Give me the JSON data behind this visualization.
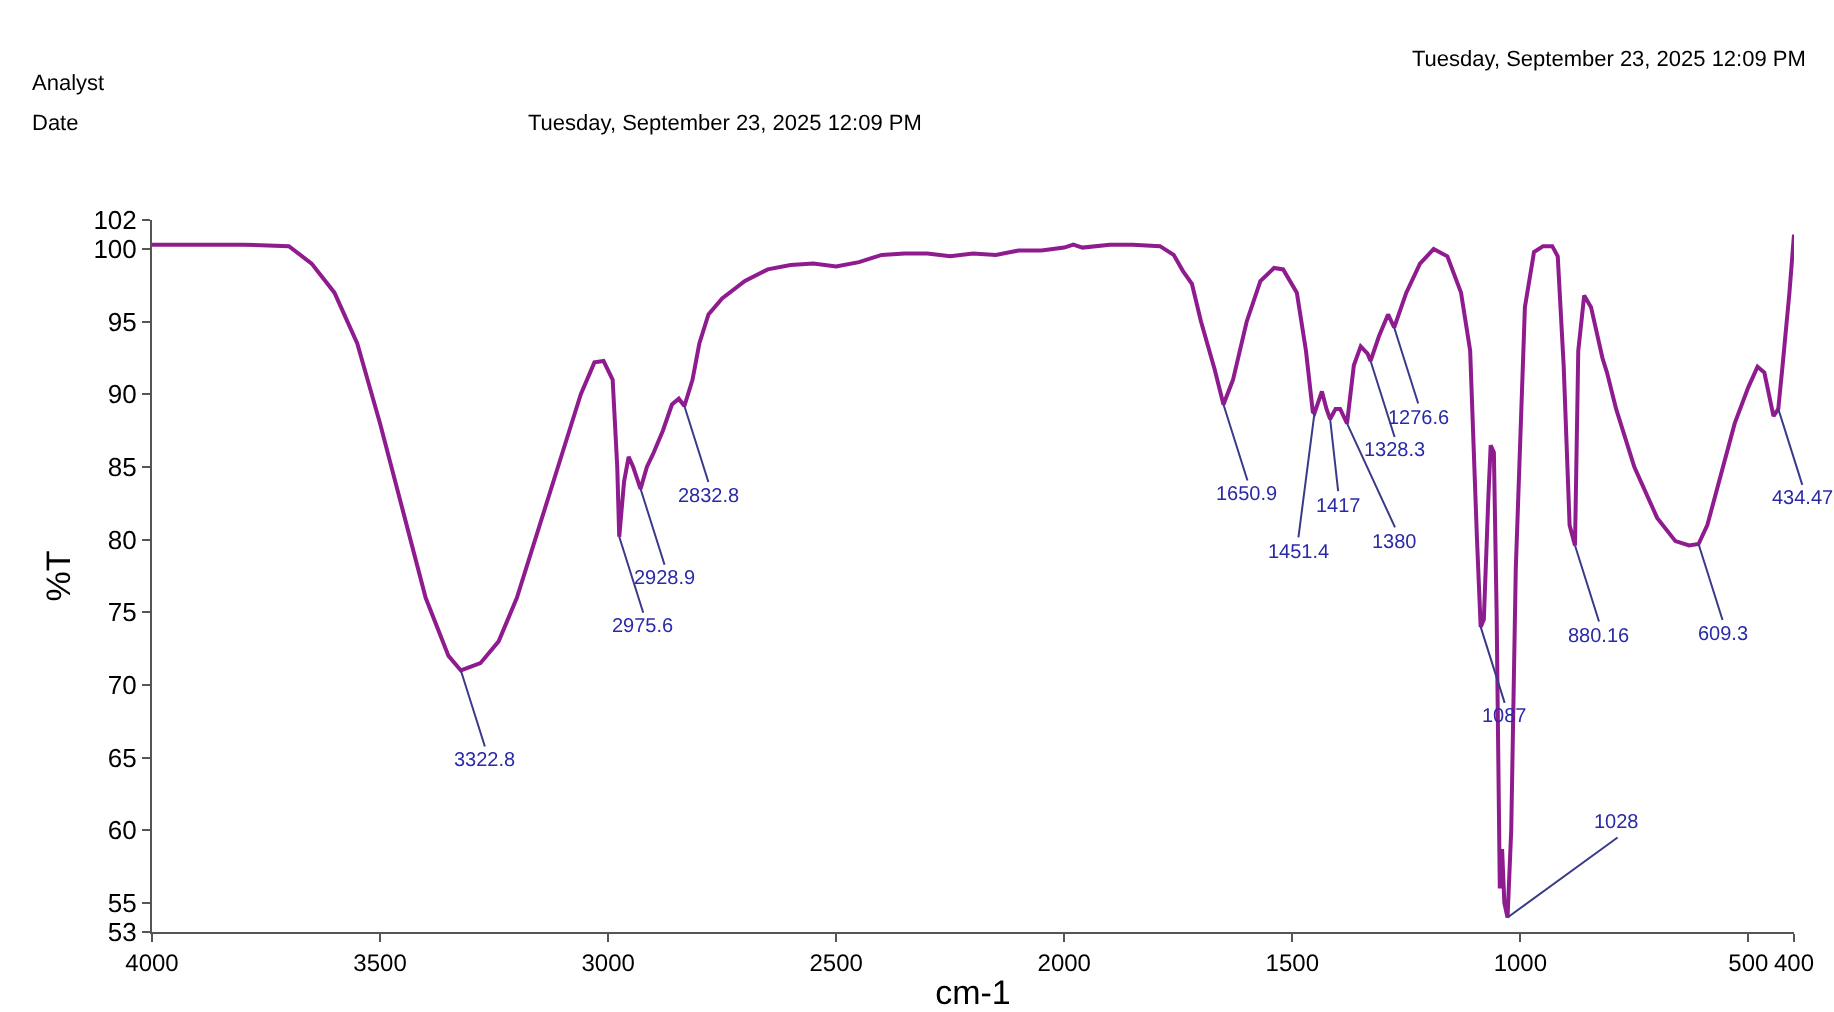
{
  "chart_data": {
    "type": "line",
    "xlabel": "cm-1",
    "ylabel": "%T",
    "annotations": [
      "Analyst",
      "Date",
      "Tuesday, September 23, 2025 12:09 PM",
      "Tuesday, September 23, 2025 12:09 PM",
      {
        "text": "3322.8",
        "x": 3322.8,
        "y": 71
      },
      {
        "text": "2975.6",
        "x": 2975.6,
        "y": 80.2
      },
      {
        "text": "2928.9",
        "x": 2928.9,
        "y": 83.5
      },
      {
        "text": "2832.8",
        "x": 2832.8,
        "y": 89.2
      },
      {
        "text": "1650.9",
        "x": 1650.9,
        "y": 89.3
      },
      {
        "text": "1451.4",
        "x": 1451.4,
        "y": 88.7
      },
      {
        "text": "1417",
        "x": 1417,
        "y": 88.3
      },
      {
        "text": "1380",
        "x": 1380,
        "y": 88
      },
      {
        "text": "1328.3",
        "x": 1328.3,
        "y": 92.3
      },
      {
        "text": "1276.6",
        "x": 1276.6,
        "y": 94.6
      },
      {
        "text": "1087",
        "x": 1087,
        "y": 74
      },
      {
        "text": "1028",
        "x": 1028,
        "y": 54
      },
      {
        "text": "880.16",
        "x": 880.16,
        "y": 79.6
      },
      {
        "text": "609.3",
        "x": 609.3,
        "y": 79.7
      },
      {
        "text": "434.47",
        "x": 434.47,
        "y": 89
      }
    ],
    "xlim": [
      4000,
      400
    ],
    "xticks": [
      4000,
      3500,
      3000,
      2500,
      2000,
      1500,
      1000,
      500,
      400
    ],
    "ylim": [
      53,
      102
    ],
    "yticks": [
      53,
      55,
      60,
      65,
      70,
      75,
      80,
      85,
      90,
      95,
      100,
      102
    ],
    "grid": false,
    "marker": "none",
    "line_style": "solid",
    "series": [
      {
        "color": "#8e1c8e",
        "x": [
          4000,
          3800,
          3700,
          3650,
          3600,
          3550,
          3500,
          3450,
          3400,
          3350,
          3322.8,
          3280,
          3240,
          3200,
          3150,
          3100,
          3060,
          3030,
          3010,
          2990,
          2980,
          2975.6,
          2965,
          2955,
          2945,
          2928.9,
          2915,
          2900,
          2880,
          2860,
          2845,
          2832.8,
          2815,
          2800,
          2780,
          2750,
          2700,
          2650,
          2600,
          2550,
          2500,
          2450,
          2400,
          2350,
          2300,
          2250,
          2200,
          2150,
          2100,
          2050,
          2000,
          1980,
          1960,
          1900,
          1850,
          1790,
          1760,
          1740,
          1720,
          1700,
          1670,
          1650.9,
          1630,
          1600,
          1570,
          1540,
          1520,
          1490,
          1470,
          1455,
          1451.4,
          1435,
          1425,
          1417,
          1405,
          1395,
          1380,
          1365,
          1350,
          1335,
          1328.3,
          1310,
          1290,
          1276.6,
          1250,
          1220,
          1190,
          1160,
          1130,
          1110,
          1095,
          1087,
          1080,
          1070,
          1065,
          1058,
          1052,
          1045,
          1040,
          1035,
          1028,
          1020,
          1010,
          990,
          970,
          950,
          930,
          918,
          905,
          892,
          880.16,
          873,
          860,
          845,
          820,
          810,
          790,
          750,
          700,
          660,
          630,
          609.3,
          590,
          560,
          530,
          500,
          480,
          465,
          445,
          434.47,
          425,
          410,
          400
        ],
        "values": [
          100.3,
          100.3,
          100.2,
          99,
          97,
          93.5,
          88,
          82,
          76,
          72,
          71,
          71.5,
          73,
          76,
          81,
          86,
          90,
          92.2,
          92.3,
          91,
          85,
          80.2,
          84,
          85.7,
          85,
          83.5,
          85,
          86,
          87.5,
          89.3,
          89.7,
          89.2,
          91,
          93.5,
          95.5,
          96.6,
          97.8,
          98.6,
          98.9,
          99,
          98.8,
          99.1,
          99.6,
          99.7,
          99.7,
          99.5,
          99.7,
          99.6,
          99.9,
          99.9,
          100.1,
          100.3,
          100.1,
          100.3,
          100.3,
          100.2,
          99.6,
          98.5,
          97.6,
          95,
          91.7,
          89.3,
          91,
          95,
          97.8,
          98.7,
          98.6,
          97,
          93,
          88.8,
          88.7,
          90.2,
          89,
          88.3,
          89,
          89,
          88,
          92,
          93.3,
          92.8,
          92.3,
          94,
          95.5,
          94.6,
          97,
          99,
          100,
          99.5,
          97,
          93,
          80,
          74,
          74.5,
          83,
          86.5,
          86,
          75,
          56,
          58.7,
          55,
          54,
          60,
          78,
          96,
          99.8,
          100.2,
          100.2,
          99.5,
          92,
          81,
          79.6,
          93,
          96.8,
          96,
          92.5,
          91.5,
          89,
          85,
          81.5,
          79.9,
          79.6,
          79.7,
          81,
          84.5,
          88,
          90.5,
          91.9,
          91.5,
          88.5,
          89,
          92,
          97,
          101
        ]
      }
    ]
  }
}
